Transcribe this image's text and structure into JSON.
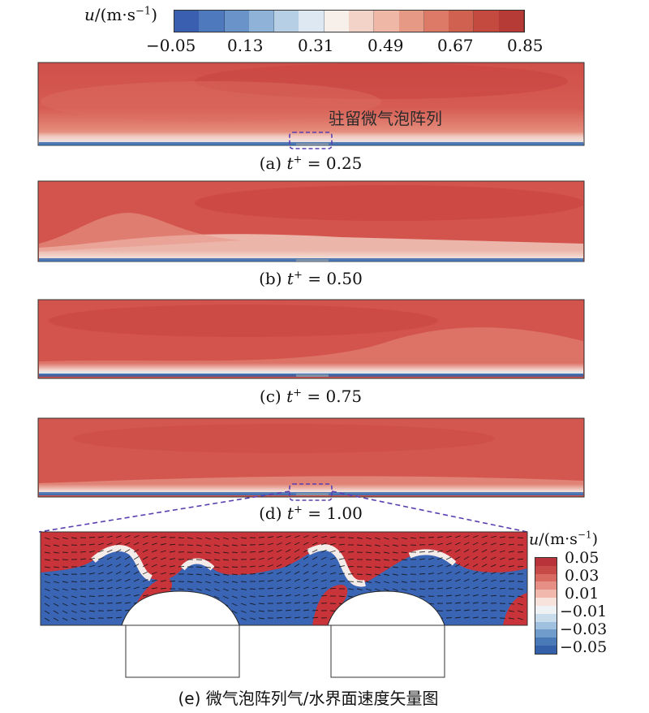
{
  "colorbar_top": {
    "title_var": "u",
    "title_unit": "/(m·s",
    "title_exp": "−1",
    "title_close": ")",
    "ticks": [
      "−0.05",
      "0.13",
      "0.31",
      "0.49",
      "0.67",
      "0.85"
    ],
    "colors": [
      "#3a5fb0",
      "#4e79bd",
      "#6a94c9",
      "#8fb3d8",
      "#b7cfe5",
      "#dde8f2",
      "#f6efea",
      "#f3d3c8",
      "#eeb7a6",
      "#e69985",
      "#dc7a67",
      "#d06050",
      "#c44a40",
      "#b63a35"
    ]
  },
  "annotation": "驻留微气泡阵列",
  "panels": [
    {
      "label": "(a) ",
      "t": "t",
      "sup": "+",
      "value": " = 0.25"
    },
    {
      "label": "(b) ",
      "t": "t",
      "sup": "+",
      "value": " = 0.50"
    },
    {
      "label": "(c) ",
      "t": "t",
      "sup": "+",
      "value": " = 0.75"
    },
    {
      "label": "(d) ",
      "t": "t",
      "sup": "+",
      "value": " = 1.00"
    }
  ],
  "colorbar_bottom": {
    "title_var": "u",
    "title_unit": "/(m·s",
    "title_exp": "−1",
    "title_close": ")",
    "ticks": [
      "0.05",
      "0.03",
      "0.01",
      "−0.01",
      "−0.03",
      "−0.05"
    ],
    "colors": [
      "#b8343a",
      "#c84a48",
      "#d86a62",
      "#e68f84",
      "#f1b9ae",
      "#f8e2dc",
      "#eef2f5",
      "#c9dcec",
      "#9fc0de",
      "#6f9ccb",
      "#4a79b8",
      "#3360a8"
    ]
  },
  "caption_e": "(e) 微气泡阵列气/水界面速度矢量图",
  "colors": {
    "field_red": "#d4554c",
    "field_deep": "#c94742",
    "field_light": "#f2d6cf",
    "wall_blue": "#6aa3cf",
    "dash": "#5a3fb0",
    "blue_region": "#3a64b4"
  }
}
